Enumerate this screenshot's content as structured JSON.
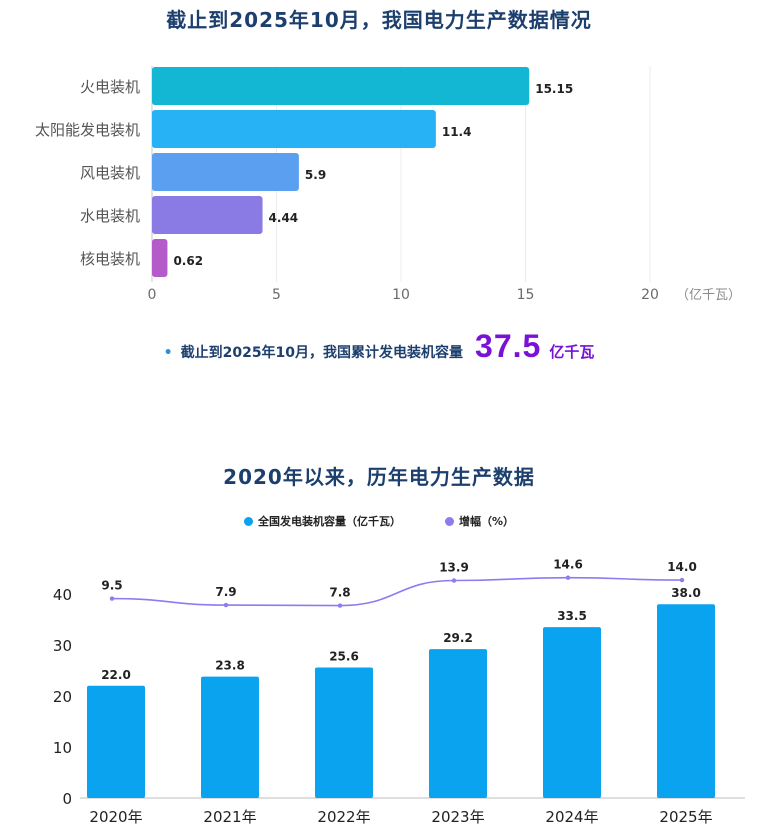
{
  "colors": {
    "title": "#1d3f6e",
    "accent": "#7a12d6",
    "bars1": [
      "#13b6d3",
      "#26b2f5",
      "#5b9ff0",
      "#8a7be4",
      "#b35bc9"
    ],
    "bar2": "#0aa3f0",
    "line2": "#8b7cf0"
  },
  "chart1": {
    "title": "截止到2025年10月，我国电力生产数据情况",
    "unit_label": "（亿千瓦）"
  },
  "summary": {
    "prefix": "截止到2025年10月，我国累计发电装机容量",
    "value": "37.5",
    "unit": "亿千瓦"
  },
  "chart2": {
    "title": "2020年以来，历年电力生产数据",
    "legend": [
      "全国发电装机容量（亿千瓦）",
      "增幅（%）"
    ]
  },
  "chart_data": [
    {
      "type": "bar",
      "orientation": "horizontal",
      "title": "截止到2025年10月，我国电力生产数据情况",
      "categories": [
        "火电装机",
        "太阳能发电装机",
        "风电装机",
        "水电装机",
        "核电装机"
      ],
      "values": [
        15.15,
        11.4,
        5.9,
        4.44,
        0.62
      ],
      "value_labels": [
        "15.15",
        "11.4",
        "5.9",
        "4.44",
        "0.62"
      ],
      "xlabel": "亿千瓦",
      "unit_label": "（亿千瓦）",
      "xlim": [
        0,
        20
      ],
      "xticks": [
        "0",
        "5",
        "10",
        "15",
        "20"
      ],
      "grid": true
    },
    {
      "type": "bar",
      "title": "2020年以来，历年电力生产数据",
      "categories": [
        "2020年",
        "2021年",
        "2022年",
        "2023年",
        "2024年",
        "2025年"
      ],
      "series": [
        {
          "name": "全国发电装机容量（亿千瓦）",
          "type": "bar",
          "values": [
            22.0,
            23.8,
            25.6,
            29.2,
            33.5,
            38.0
          ],
          "labels": [
            "22.0",
            "23.8",
            "25.6",
            "29.2",
            "33.5",
            "38.0"
          ]
        },
        {
          "name": "增幅（%）",
          "type": "line",
          "values": [
            9.5,
            7.9,
            7.8,
            13.9,
            14.6,
            14.0
          ],
          "labels": [
            "9.5",
            "7.9",
            "7.8",
            "13.9",
            "14.6",
            "14.0"
          ]
        }
      ],
      "ylim": [
        0,
        40
      ],
      "yticks": [
        "0",
        "10",
        "20",
        "30",
        "40"
      ],
      "legend_position": "top"
    }
  ]
}
